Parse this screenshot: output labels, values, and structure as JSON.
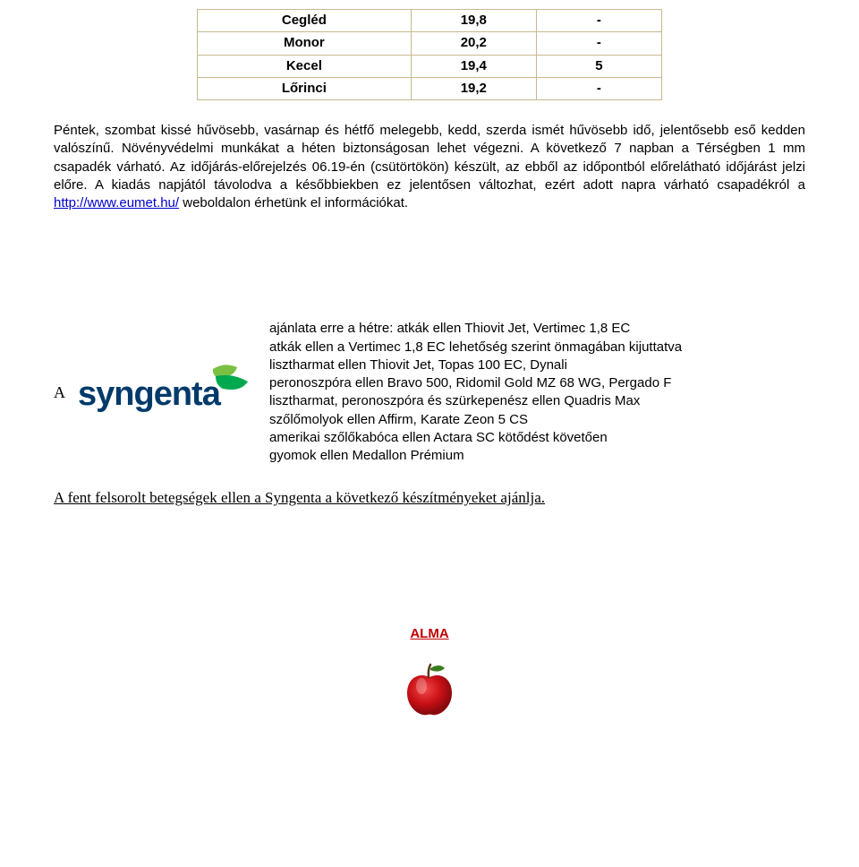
{
  "table": {
    "border_color": "#c8b890",
    "rows": [
      {
        "city": "Cegléd",
        "val": "19,8",
        "extra": "-"
      },
      {
        "city": "Monor",
        "val": "20,2",
        "extra": "-"
      },
      {
        "city": "Kecel",
        "val": "19,4",
        "extra": "5"
      },
      {
        "city": "Lőrinci",
        "val": "19,2",
        "extra": "-"
      }
    ]
  },
  "paragraph": {
    "part1": "Péntek, szombat kissé hűvösebb, vasárnap és hétfő melegebb, kedd, szerda ismét hűvösebb idő, jelentősebb eső kedden valószínű. Növényvédelmi munkákat a héten biztonságosan lehet végezni. A következő 7 napban a Térségben 1 mm csapadék várható. Az időjárás-előrejelzés 06.19-én (csütörtökön) készült, az ebből az időpontból előrelátható időjárást jelzi előre. A kiadás napjától távolodva a későbbiekben ez jelentősen változhat, ezért adott napra várható csapadékról a ",
    "link_text": "http://www.eumet.hu/",
    "part2": " weboldalon érhetünk el információkat."
  },
  "sponsor": {
    "lead": "A",
    "logo_text": "syngenta",
    "logo_colors": {
      "text": "#003a6a",
      "leaf1": "#7ac143",
      "leaf2": "#00a94f"
    },
    "lines": [
      "ajánlata erre a hétre: atkák ellen Thiovit Jet, Vertimec 1,8 EC",
      "atkák ellen a Vertimec 1,8 EC lehetőség szerint önmagában kijuttatva",
      "lisztharmat ellen Thiovit Jet, Topas 100 EC, Dynali",
      "peronoszpóra ellen Bravo 500, Ridomil Gold MZ 68 WG, Pergado F",
      "lisztharmat, peronoszpóra és szürkepenész ellen Quadris Max",
      "szőlőmolyok ellen Affirm, Karate Zeon 5 CS",
      "amerikai szőlőkabóca ellen Actara SC kötődést követően",
      "gyomok ellen Medallon Prémium"
    ]
  },
  "footer": "A fent felsorolt betegségek ellen a Syngenta a következő készítményeket ajánlja.",
  "alma": {
    "title": "ALMA",
    "title_color": "#c00000",
    "apple_colors": {
      "body": "#c91016",
      "shade": "#8a0a0e",
      "leaf": "#3a7a1e",
      "stem": "#5a3a1a"
    }
  }
}
